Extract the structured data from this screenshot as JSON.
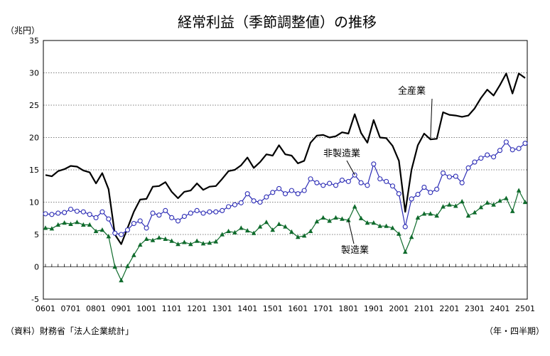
{
  "chart_data": {
    "type": "line",
    "title": "経常利益（季節調整値）の推移",
    "ylabel": "（兆円）",
    "xlabel": "（年・四半期）",
    "source": "（資料）財務省「法人企業統計」",
    "ylim": [
      -5,
      35
    ],
    "yticks": [
      -5,
      0,
      5,
      10,
      15,
      20,
      25,
      30,
      35
    ],
    "grid": "horizontal dotted",
    "legend": "inline labels",
    "x_tick_labels": [
      "0601",
      "0701",
      "0801",
      "0901",
      "1001",
      "1101",
      "1201",
      "1301",
      "1401",
      "1501",
      "1601",
      "1701",
      "1801",
      "1901",
      "2001",
      "2101",
      "2201",
      "2301",
      "2401",
      "2501"
    ],
    "series": [
      {
        "name": "全産業",
        "color": "#000000",
        "marker": "none",
        "values": [
          14.2,
          14.0,
          14.8,
          15.1,
          15.6,
          15.5,
          14.9,
          14.6,
          12.9,
          14.5,
          12.0,
          5.0,
          3.5,
          6.0,
          8.5,
          10.4,
          10.5,
          12.4,
          12.5,
          13.1,
          11.6,
          10.6,
          11.6,
          11.8,
          12.9,
          11.9,
          12.4,
          12.5,
          13.6,
          14.8,
          15.0,
          15.7,
          16.9,
          15.3,
          16.2,
          17.4,
          17.2,
          18.8,
          17.4,
          17.2,
          16.0,
          16.4,
          19.2,
          20.3,
          20.4,
          20.0,
          20.2,
          20.8,
          20.6,
          23.6,
          20.7,
          19.2,
          22.7,
          20.0,
          19.9,
          18.7,
          16.4,
          8.5,
          15.0,
          18.8,
          20.6,
          19.7,
          19.8,
          23.9,
          23.5,
          23.4,
          23.2,
          23.4,
          24.5,
          26.1,
          27.4,
          26.5,
          28.1,
          29.9,
          26.8,
          29.9,
          29.2
        ]
      },
      {
        "name": "非製造業",
        "color": "#2b2bb5",
        "marker": "open-circle",
        "values": [
          8.2,
          8.1,
          8.3,
          8.4,
          8.9,
          8.6,
          8.5,
          8.1,
          7.6,
          8.5,
          7.4,
          5.2,
          5.0,
          5.7,
          6.7,
          7.1,
          6.0,
          8.3,
          8.0,
          8.7,
          7.6,
          7.1,
          7.8,
          8.3,
          8.7,
          8.3,
          8.5,
          8.5,
          8.7,
          9.3,
          9.6,
          9.9,
          11.3,
          10.2,
          10.0,
          10.8,
          11.5,
          12.1,
          11.3,
          11.8,
          11.3,
          11.8,
          13.6,
          13.0,
          12.6,
          12.9,
          12.6,
          13.4,
          13.2,
          14.2,
          13.0,
          12.6,
          15.9,
          13.6,
          13.2,
          12.5,
          11.3,
          6.2,
          10.5,
          11.2,
          12.3,
          11.5,
          12.0,
          14.5,
          13.9,
          14.0,
          13.0,
          15.3,
          16.2,
          16.8,
          17.3,
          17.0,
          18.0,
          19.3,
          18.1,
          18.3,
          19.1
        ]
      },
      {
        "name": "製造業",
        "color": "#0f6b2c",
        "marker": "filled-triangle",
        "values": [
          6.0,
          5.9,
          6.5,
          6.8,
          6.6,
          6.9,
          6.5,
          6.5,
          5.5,
          5.7,
          4.7,
          0.0,
          -2.1,
          0.1,
          1.8,
          3.4,
          4.3,
          4.1,
          4.5,
          4.3,
          4.0,
          3.5,
          3.8,
          3.5,
          4.0,
          3.6,
          3.7,
          3.9,
          5.0,
          5.5,
          5.3,
          6.0,
          5.6,
          5.2,
          6.2,
          6.9,
          5.7,
          6.6,
          6.2,
          5.4,
          4.6,
          4.8,
          5.5,
          7.0,
          7.6,
          7.1,
          7.6,
          7.4,
          7.2,
          9.3,
          7.5,
          6.8,
          6.8,
          6.3,
          6.3,
          6.0,
          5.1,
          2.3,
          4.6,
          7.6,
          8.2,
          8.2,
          7.9,
          9.3,
          9.6,
          9.4,
          10.1,
          7.9,
          8.4,
          9.2,
          9.9,
          9.6,
          10.2,
          10.6,
          8.6,
          11.8,
          10.0
        ]
      }
    ]
  }
}
